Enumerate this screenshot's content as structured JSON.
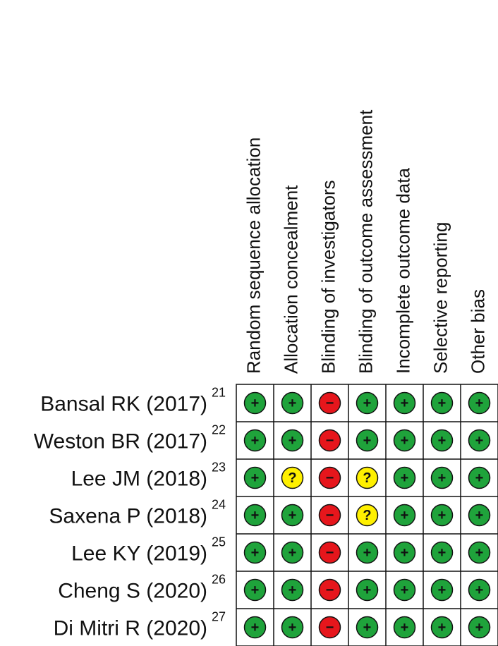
{
  "columns": [
    "Random sequence allocation",
    "Allocation concealment",
    "Blinding of investigators",
    "Blinding of outcome assessment",
    "Incomplete outcome data",
    "Selective reporting",
    "Other bias"
  ],
  "rows": [
    {
      "study": "Bansal RK (2017)",
      "ref": "21",
      "cells": [
        "+",
        "+",
        "−",
        "+",
        "+",
        "+",
        "+"
      ]
    },
    {
      "study": "Weston BR (2017)",
      "ref": "22",
      "cells": [
        "+",
        "+",
        "−",
        "+",
        "+",
        "+",
        "+"
      ]
    },
    {
      "study": "Lee JM (2018)",
      "ref": "23",
      "cells": [
        "+",
        "?",
        "−",
        "?",
        "+",
        "+",
        "+"
      ]
    },
    {
      "study": "Saxena P (2018)",
      "ref": "24",
      "cells": [
        "+",
        "+",
        "−",
        "?",
        "+",
        "+",
        "+"
      ]
    },
    {
      "study": "Lee KY (2019)",
      "ref": "25",
      "cells": [
        "+",
        "+",
        "−",
        "+",
        "+",
        "+",
        "+"
      ]
    },
    {
      "study": "Cheng S (2020)",
      "ref": "26",
      "cells": [
        "+",
        "+",
        "−",
        "+",
        "+",
        "+",
        "+"
      ]
    },
    {
      "study": "Di Mitri R (2020)",
      "ref": "27",
      "cells": [
        "+",
        "+",
        "−",
        "+",
        "+",
        "+",
        "+"
      ]
    }
  ],
  "colors": {
    "+": "#1fa33b",
    "?": "#fff000",
    "−": "#e6161c"
  }
}
